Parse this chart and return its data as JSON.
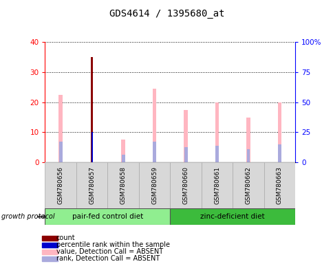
{
  "title": "GDS4614 / 1395680_at",
  "samples": [
    "GSM780656",
    "GSM780657",
    "GSM780658",
    "GSM780659",
    "GSM780660",
    "GSM780661",
    "GSM780662",
    "GSM780663"
  ],
  "value_absent": [
    22.5,
    0,
    7.5,
    24.5,
    17.5,
    20.0,
    15.0,
    20.0
  ],
  "rank_absent": [
    7.0,
    0,
    2.5,
    7.0,
    5.0,
    5.5,
    4.5,
    6.0
  ],
  "count_value": [
    0,
    35,
    0,
    0,
    0,
    0,
    0,
    0
  ],
  "percentile_rank": [
    0,
    10,
    0,
    0,
    0,
    0,
    0,
    0
  ],
  "ylim_left": [
    0,
    40
  ],
  "ylim_right": [
    0,
    100
  ],
  "yticks_left": [
    0,
    10,
    20,
    30,
    40
  ],
  "yticks_right": [
    0,
    25,
    50,
    75,
    100
  ],
  "ytick_labels_right": [
    "0",
    "25",
    "50",
    "75",
    "100%"
  ],
  "groups": [
    {
      "label": "pair-fed control diet",
      "indices": [
        0,
        1,
        2,
        3
      ],
      "color": "#90EE90"
    },
    {
      "label": "zinc-deficient diet",
      "indices": [
        4,
        5,
        6,
        7
      ],
      "color": "#3CBB3C"
    }
  ],
  "group_protocol_label": "growth protocol",
  "value_absent_color": "#FFB6C1",
  "rank_absent_color": "#AAAADD",
  "count_color": "#8B0000",
  "percentile_color": "#0000CC",
  "legend_items": [
    {
      "label": "count",
      "color": "#8B0000"
    },
    {
      "label": "percentile rank within the sample",
      "color": "#0000CC"
    },
    {
      "label": "value, Detection Call = ABSENT",
      "color": "#FFB6C1"
    },
    {
      "label": "rank, Detection Call = ABSENT",
      "color": "#AAAADD"
    }
  ],
  "title_fontsize": 10,
  "tick_fontsize": 7.5,
  "sample_fontsize": 6.5,
  "legend_fontsize": 7,
  "group_fontsize": 7.5
}
